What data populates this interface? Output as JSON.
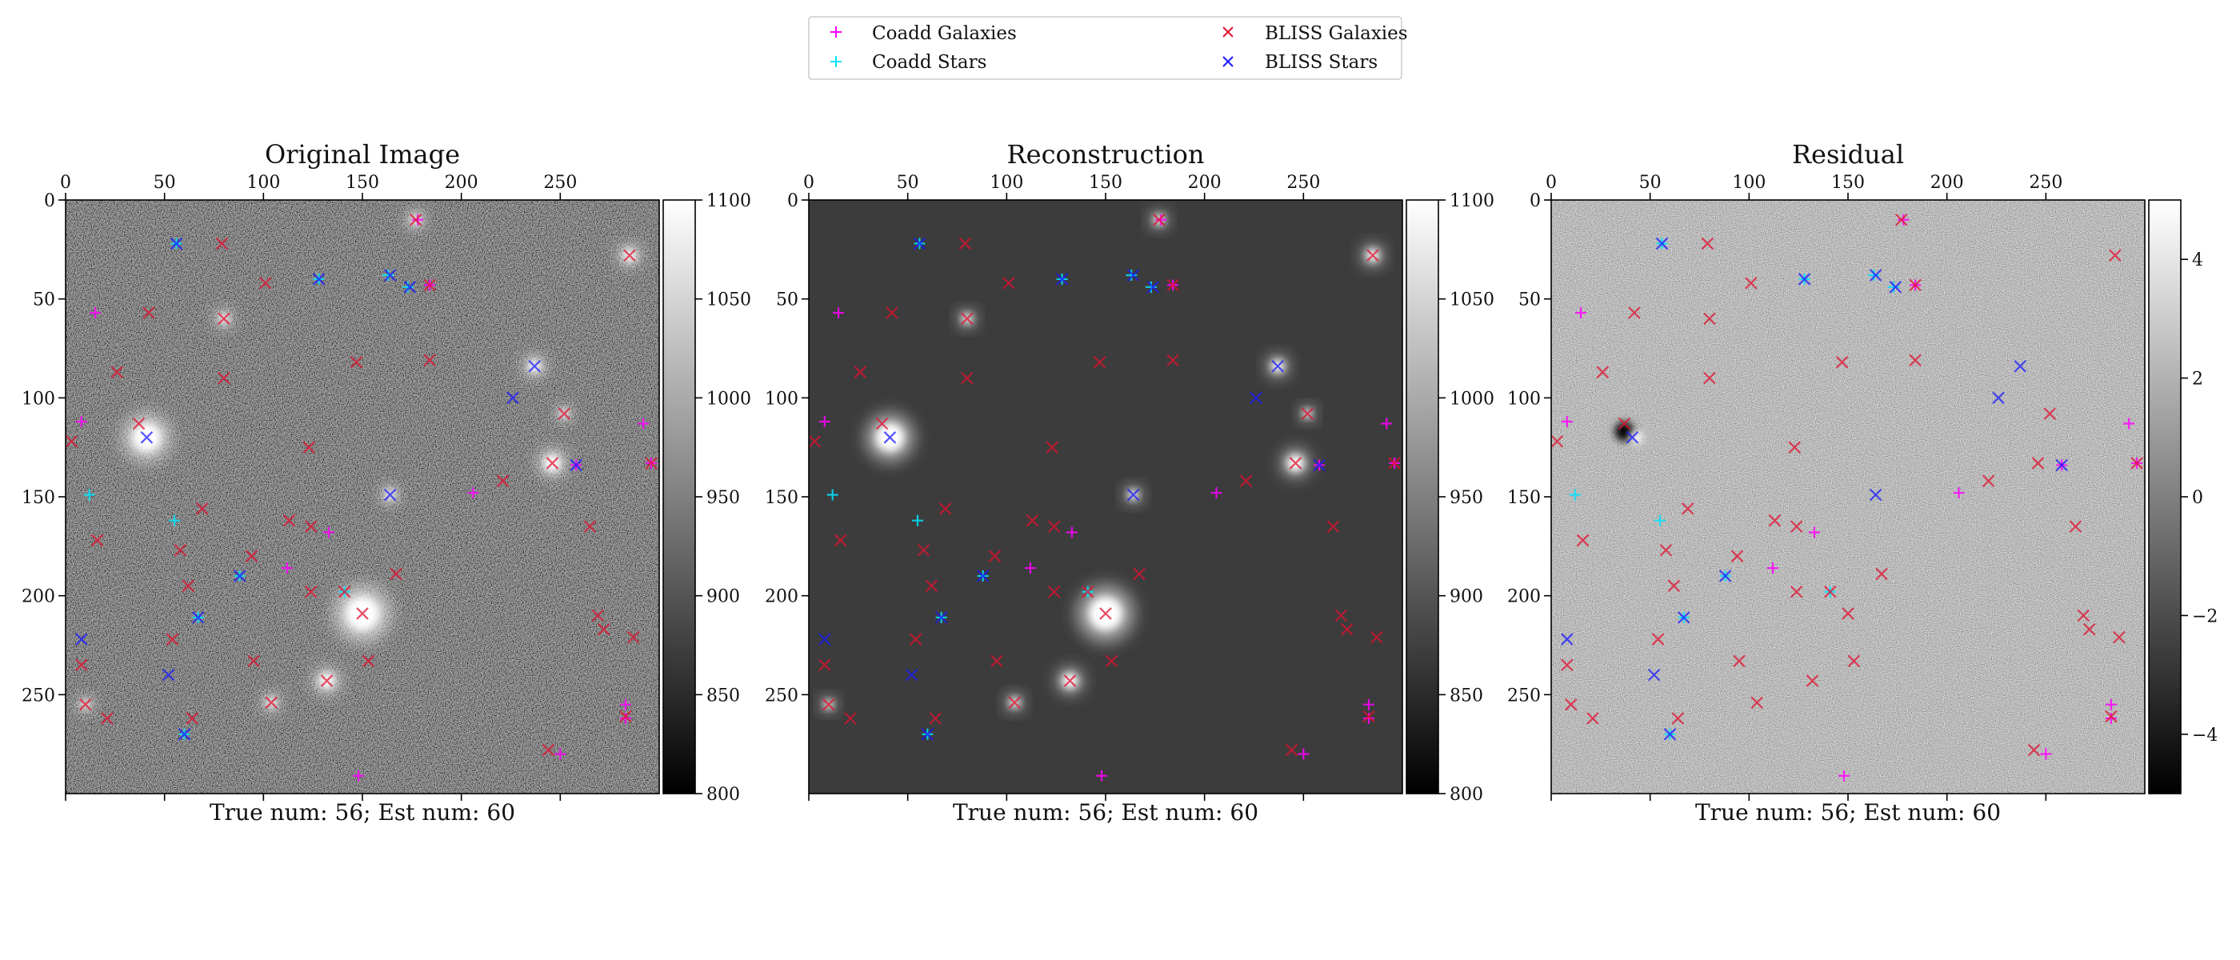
{
  "legend": {
    "entries": [
      {
        "label": "Coadd Galaxies",
        "marker": "plus",
        "color": "#ff00ff"
      },
      {
        "label": "Coadd Stars",
        "marker": "plus",
        "color": "#00e5ff"
      },
      {
        "label": "BLISS Galaxies",
        "marker": "cross",
        "color": "#e0102f"
      },
      {
        "label": "BLISS Stars",
        "marker": "cross",
        "color": "#1a1aff"
      }
    ]
  },
  "chart_data": [
    {
      "type": "heatmap",
      "title": "Original Image",
      "caption": "True num: 56; Est num: 60",
      "x_ticks": [
        0,
        50,
        100,
        150,
        200,
        250
      ],
      "y_ticks": [
        0,
        50,
        100,
        150,
        200,
        250
      ],
      "xlim": [
        0,
        300
      ],
      "ylim": [
        0,
        300
      ],
      "colorbar": {
        "min": 800,
        "max": 1100,
        "ticks": [
          800,
          850,
          900,
          950,
          1000,
          1050,
          1100
        ],
        "colormap": "gray"
      },
      "background": "noise"
    },
    {
      "type": "heatmap",
      "title": "Reconstruction",
      "caption": "True num: 56; Est num: 60",
      "x_ticks": [
        0,
        50,
        100,
        150,
        200,
        250
      ],
      "y_ticks": [
        0,
        50,
        100,
        150,
        200,
        250
      ],
      "xlim": [
        0,
        300
      ],
      "ylim": [
        0,
        300
      ],
      "colorbar": {
        "min": 800,
        "max": 1100,
        "ticks": [
          800,
          850,
          900,
          950,
          1000,
          1050,
          1100
        ],
        "colormap": "gray"
      },
      "background": "smooth"
    },
    {
      "type": "heatmap",
      "title": "Residual",
      "caption": "True num: 56; Est num: 60",
      "x_ticks": [
        0,
        50,
        100,
        150,
        200,
        250
      ],
      "y_ticks": [
        0,
        50,
        100,
        150,
        200,
        250
      ],
      "xlim": [
        0,
        300
      ],
      "ylim": [
        0,
        300
      ],
      "colorbar": {
        "min": -5,
        "max": 5,
        "ticks": [
          -4,
          -2,
          0,
          2,
          4
        ],
        "colormap": "gray"
      },
      "background": "residual"
    }
  ],
  "sources": {
    "coadd_galaxies": [
      [
        15,
        57
      ],
      [
        8,
        112
      ],
      [
        178,
        10
      ],
      [
        184,
        43
      ],
      [
        133,
        168
      ],
      [
        112,
        186
      ],
      [
        148,
        291
      ],
      [
        206,
        148
      ],
      [
        250,
        280
      ],
      [
        283,
        255
      ],
      [
        292,
        113
      ],
      [
        296,
        133
      ],
      [
        258,
        134
      ],
      [
        283,
        262
      ]
    ],
    "coadd_stars": [
      [
        12,
        149
      ],
      [
        128,
        40
      ],
      [
        163,
        38
      ],
      [
        173,
        44
      ],
      [
        141,
        198
      ],
      [
        56,
        22
      ],
      [
        67,
        211
      ],
      [
        60,
        270
      ],
      [
        88,
        190
      ],
      [
        55,
        162
      ]
    ],
    "bliss_galaxies": [
      [
        16,
        172
      ],
      [
        3,
        122
      ],
      [
        8,
        235
      ],
      [
        10,
        255
      ],
      [
        21,
        262
      ],
      [
        26,
        87
      ],
      [
        37,
        113
      ],
      [
        42,
        57
      ],
      [
        58,
        177
      ],
      [
        54,
        222
      ],
      [
        62,
        195
      ],
      [
        69,
        156
      ],
      [
        64,
        262
      ],
      [
        79,
        22
      ],
      [
        80,
        60
      ],
      [
        80,
        90
      ],
      [
        94,
        180
      ],
      [
        95,
        233
      ],
      [
        101,
        42
      ],
      [
        104,
        254
      ],
      [
        124,
        165
      ],
      [
        124,
        198
      ],
      [
        132,
        243
      ],
      [
        150,
        209
      ],
      [
        147,
        82
      ],
      [
        177,
        10
      ],
      [
        184,
        43
      ],
      [
        167,
        189
      ],
      [
        221,
        142
      ],
      [
        246,
        133
      ],
      [
        252,
        108
      ],
      [
        265,
        165
      ],
      [
        269,
        210
      ],
      [
        285,
        28
      ],
      [
        287,
        221
      ],
      [
        296,
        133
      ],
      [
        141,
        198
      ],
      [
        153,
        233
      ],
      [
        113,
        162
      ],
      [
        123,
        125
      ],
      [
        184,
        81
      ],
      [
        272,
        217
      ],
      [
        244,
        278
      ],
      [
        283,
        261
      ]
    ],
    "bliss_stars": [
      [
        41,
        120
      ],
      [
        237,
        84
      ],
      [
        226,
        100
      ],
      [
        164,
        149
      ],
      [
        8,
        222
      ],
      [
        52,
        240
      ],
      [
        88,
        190
      ],
      [
        60,
        270
      ],
      [
        67,
        211
      ],
      [
        56,
        22
      ],
      [
        164,
        38
      ],
      [
        174,
        44
      ],
      [
        128,
        40
      ],
      [
        258,
        134
      ]
    ]
  },
  "bright_sources": [
    [
      41,
      120,
      2.2
    ],
    [
      150,
      209,
      2.6
    ],
    [
      132,
      243,
      1.2
    ],
    [
      246,
      133,
      1.3
    ],
    [
      237,
      84,
      1.0
    ],
    [
      285,
      28,
      1.0
    ],
    [
      80,
      60,
      0.8
    ],
    [
      177,
      10,
      0.8
    ],
    [
      104,
      254,
      0.8
    ],
    [
      10,
      255,
      0.7
    ],
    [
      164,
      149,
      0.8
    ],
    [
      252,
      108,
      0.7
    ]
  ]
}
